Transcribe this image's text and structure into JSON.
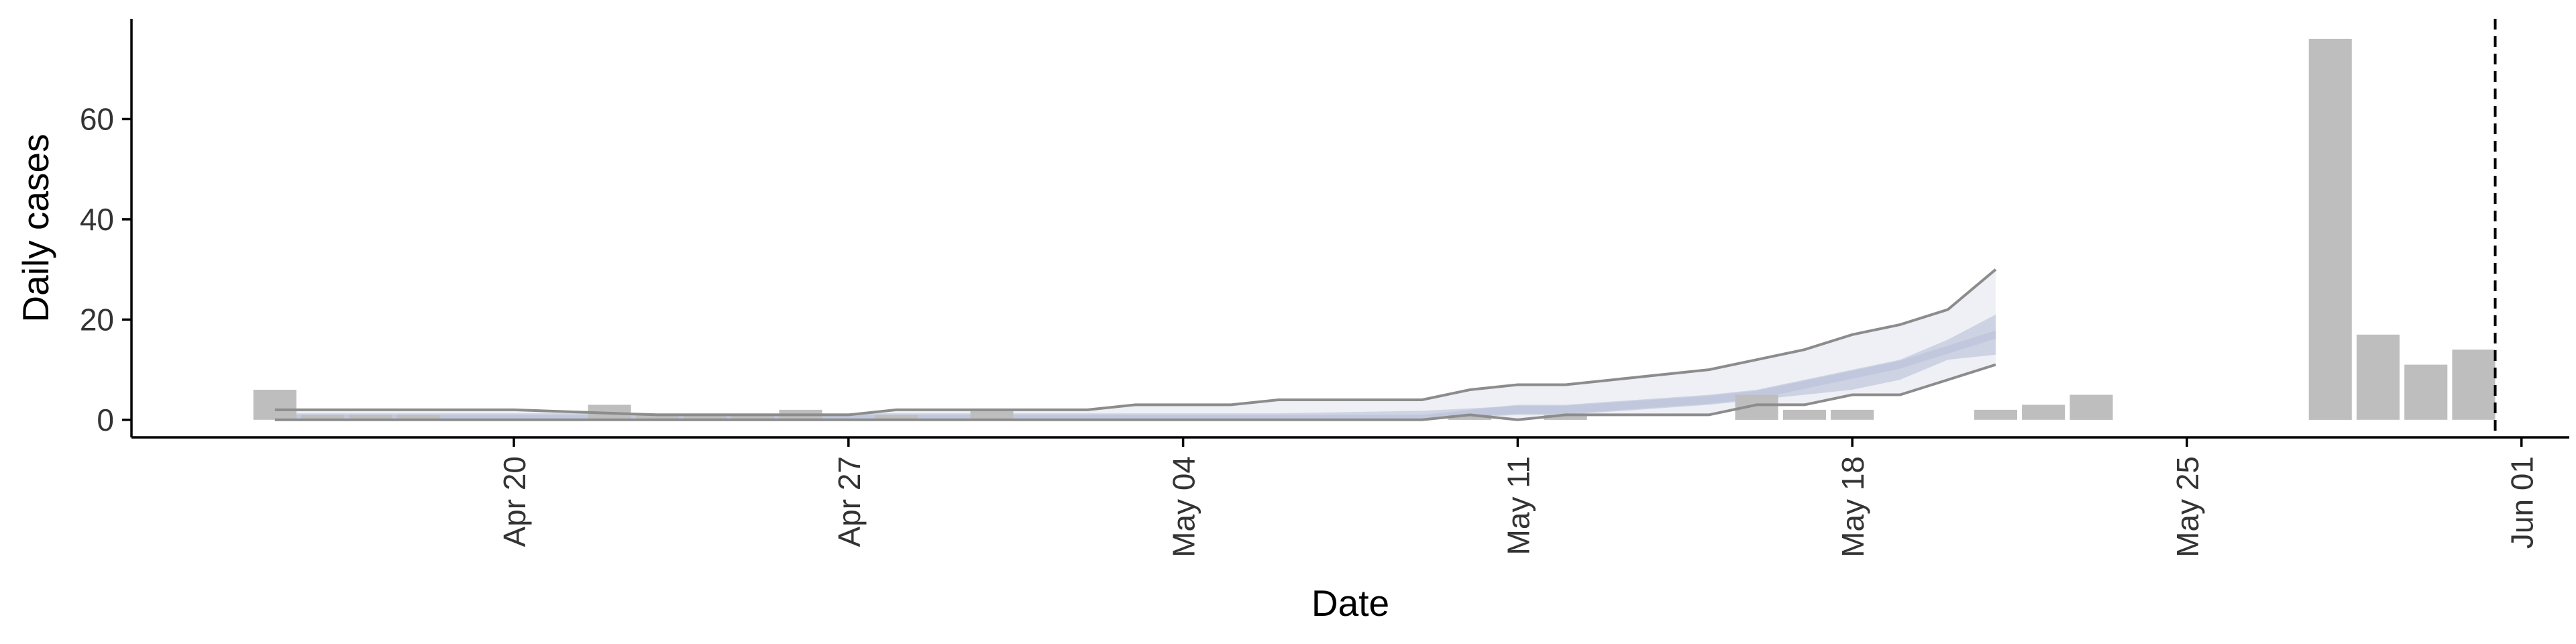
{
  "chart_data": {
    "type": "bar",
    "xlabel": "Date",
    "ylabel": "Daily cases",
    "xlim": [
      "2020-04-12",
      "2020-06-02"
    ],
    "ylim": [
      -3.5,
      80
    ],
    "grid": false,
    "legend": "none",
    "x_ticks": [
      {
        "date": "2020-04-20",
        "label": "Apr 20"
      },
      {
        "date": "2020-04-27",
        "label": "Apr 27"
      },
      {
        "date": "2020-05-04",
        "label": "May 04"
      },
      {
        "date": "2020-05-11",
        "label": "May 11"
      },
      {
        "date": "2020-05-18",
        "label": "May 18"
      },
      {
        "date": "2020-05-25",
        "label": "May 25"
      },
      {
        "date": "2020-06-01",
        "label": "Jun 01"
      }
    ],
    "y_ticks": [
      0,
      20,
      40,
      60
    ],
    "bars": [
      {
        "date": "2020-04-15",
        "value": 6
      },
      {
        "date": "2020-04-16",
        "value": 1
      },
      {
        "date": "2020-04-17",
        "value": 1
      },
      {
        "date": "2020-04-18",
        "value": 1
      },
      {
        "date": "2020-04-22",
        "value": 3
      },
      {
        "date": "2020-04-23",
        "value": 1
      },
      {
        "date": "2020-04-24",
        "value": 1
      },
      {
        "date": "2020-04-25",
        "value": 1
      },
      {
        "date": "2020-04-26",
        "value": 2
      },
      {
        "date": "2020-04-28",
        "value": 1
      },
      {
        "date": "2020-04-30",
        "value": 2
      },
      {
        "date": "2020-05-10",
        "value": 1
      },
      {
        "date": "2020-05-12",
        "value": 1
      },
      {
        "date": "2020-05-16",
        "value": 5
      },
      {
        "date": "2020-05-17",
        "value": 2
      },
      {
        "date": "2020-05-18",
        "value": 2
      },
      {
        "date": "2020-05-21",
        "value": 2
      },
      {
        "date": "2020-05-22",
        "value": 3
      },
      {
        "date": "2020-05-23",
        "value": 5
      },
      {
        "date": "2020-05-28",
        "value": 76
      },
      {
        "date": "2020-05-29",
        "value": 17
      },
      {
        "date": "2020-05-30",
        "value": 11
      },
      {
        "date": "2020-05-31",
        "value": 14
      }
    ],
    "forecast": {
      "dates": [
        "2020-04-15",
        "2020-04-20",
        "2020-04-23",
        "2020-04-27",
        "2020-04-28",
        "2020-05-02",
        "2020-05-03",
        "2020-05-05",
        "2020-05-06",
        "2020-05-09",
        "2020-05-10",
        "2020-05-11",
        "2020-05-12",
        "2020-05-15",
        "2020-05-16",
        "2020-05-17",
        "2020-05-18",
        "2020-05-19",
        "2020-05-20",
        "2020-05-21"
      ],
      "outer_upper": [
        2,
        2,
        1,
        1,
        2,
        2,
        3,
        3,
        4,
        4,
        6,
        7,
        7,
        10,
        12,
        14,
        17,
        19,
        22,
        30
      ],
      "inner_upper": [
        1,
        1,
        1,
        1,
        1,
        1,
        1,
        1,
        1,
        1,
        2,
        3,
        3,
        5,
        6,
        8,
        10,
        12,
        16,
        21
      ],
      "median": [
        0.5,
        0.5,
        0.5,
        0.5,
        0.5,
        0.5,
        0.5,
        0.5,
        0.5,
        1,
        1.5,
        2,
        2,
        4,
        5,
        7,
        9,
        11,
        14,
        17
      ],
      "inner_lower": [
        0,
        0,
        0,
        0,
        0,
        0,
        0,
        0,
        0,
        0,
        0.5,
        1,
        1,
        3,
        4,
        5,
        6,
        8,
        12,
        13
      ],
      "outer_lower": [
        0,
        0,
        0,
        0,
        0,
        0,
        0,
        0,
        0,
        0,
        1,
        0,
        1,
        1,
        3,
        3,
        5,
        5,
        8,
        11
      ]
    },
    "vline": {
      "date": "2020-05-31.45",
      "style": "dashed"
    },
    "colors": {
      "bar": "#bebebe",
      "outer_band": "#eef0f5",
      "inner_band": "#cdd3e3",
      "median_band": "#b9c1d8",
      "bound_line": "#8c8c8c",
      "axis": "#000000",
      "vline": "#000000"
    }
  }
}
